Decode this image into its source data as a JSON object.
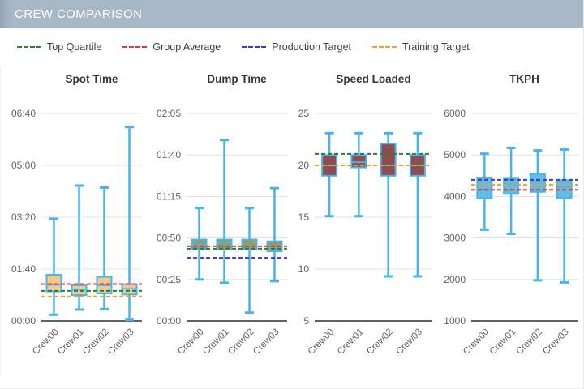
{
  "header": {
    "title": "CREW COMPARISON"
  },
  "legend": [
    {
      "name": "top-quartile",
      "label": "Top Quartile",
      "color": "#2e7d32"
    },
    {
      "name": "group-average",
      "label": "Group Average",
      "color": "#e53935"
    },
    {
      "name": "production-target",
      "label": "Production Target",
      "color": "#3939d4"
    },
    {
      "name": "training-target",
      "label": "Training Target",
      "color": "#f59a23"
    }
  ],
  "colors": {
    "header_bg": "#a7b7c6",
    "box_stroke": "#47b4ec",
    "gridline": "#e3e3e3",
    "axis": "#5f6368"
  },
  "chart_data": [
    {
      "type": "boxplot",
      "title": "Spot Time",
      "categories": [
        "Crew00",
        "Crew01",
        "Crew02",
        "Crew03"
      ],
      "ylim": [
        0,
        400
      ],
      "yticks": [
        0,
        100,
        200,
        300,
        400
      ],
      "ytick_labels": [
        "00:00",
        "01:40",
        "03:20",
        "05:00",
        "06:40"
      ],
      "box_fill": "#f4c98e",
      "series": [
        {
          "name": "Crew00",
          "low": 12,
          "q1": 57,
          "median": 70,
          "q3": 89,
          "high": 197
        },
        {
          "name": "Crew01",
          "low": 22,
          "q1": 50,
          "median": 61,
          "q3": 69,
          "high": 261
        },
        {
          "name": "Crew02",
          "low": 23,
          "q1": 53,
          "median": 69,
          "q3": 85,
          "high": 257
        },
        {
          "name": "Crew03",
          "low": 2,
          "q1": 51,
          "median": 62,
          "q3": 71,
          "high": 374
        }
      ],
      "ref_lines": [
        {
          "legend": "Group Average",
          "value": 71,
          "color": "#e53935"
        },
        {
          "legend": "Top Quartile",
          "value": 58,
          "color": "#2e7d32"
        },
        {
          "legend": "Training Target",
          "value": 47,
          "color": "#f59a23"
        }
      ]
    },
    {
      "type": "boxplot",
      "title": "Dump Time",
      "categories": [
        "Crew00",
        "Crew01",
        "Crew02",
        "Crew03"
      ],
      "ylim": [
        0,
        125
      ],
      "yticks": [
        0,
        25,
        50,
        75,
        100,
        125
      ],
      "ytick_labels": [
        "00:00",
        "00:25",
        "00:50",
        "01:15",
        "01:40",
        "02:05"
      ],
      "box_fill": "#8f9e63",
      "series": [
        {
          "name": "Crew00",
          "low": 25,
          "q1": 43,
          "median": 46,
          "q3": 49,
          "high": 68
        },
        {
          "name": "Crew01",
          "low": 23,
          "q1": 43,
          "median": 47,
          "q3": 49,
          "high": 109
        },
        {
          "name": "Crew02",
          "low": 5,
          "q1": 43,
          "median": 45,
          "q3": 49,
          "high": 68
        },
        {
          "name": "Crew03",
          "low": 24,
          "q1": 42,
          "median": 44,
          "q3": 48,
          "high": 80
        }
      ],
      "ref_lines": [
        {
          "legend": "Group Average",
          "value": 45,
          "color": "#e53935"
        },
        {
          "legend": "Top Quartile",
          "value": 43.5,
          "color": "#2e7d32"
        },
        {
          "legend": "Production Target",
          "value": 38,
          "color": "#3939d4"
        }
      ]
    },
    {
      "type": "boxplot",
      "title": "Speed Loaded",
      "categories": [
        "Crew00",
        "Crew01",
        "Crew02",
        "Crew03"
      ],
      "ylim": [
        5,
        25
      ],
      "yticks": [
        5,
        10,
        15,
        20,
        25
      ],
      "ytick_labels": [
        "5",
        "10",
        "15",
        "20",
        "25"
      ],
      "box_fill": "#8e4b52",
      "series": [
        {
          "name": "Crew00",
          "low": 15.1,
          "q1": 19.0,
          "median": 20.0,
          "q3": 21.0,
          "high": 23.1
        },
        {
          "name": "Crew01",
          "low": 15.1,
          "q1": 19.8,
          "median": 20.3,
          "q3": 21.0,
          "high": 23.1
        },
        {
          "name": "Crew02",
          "low": 9.3,
          "q1": 19.0,
          "median": 20.0,
          "q3": 22.1,
          "high": 23.1
        },
        {
          "name": "Crew03",
          "low": 9.3,
          "q1": 19.0,
          "median": 20.0,
          "q3": 21.0,
          "high": 23.1
        }
      ],
      "ref_lines": [
        {
          "legend": "Top Quartile",
          "value": 21.1,
          "color": "#2e7d32"
        },
        {
          "legend": "Training Target",
          "value": 20.0,
          "color": "#f59a23"
        }
      ]
    },
    {
      "type": "boxplot",
      "title": "TKPH",
      "categories": [
        "Crew00",
        "Crew01",
        "Crew02",
        "Crew03"
      ],
      "ylim": [
        1000,
        6000
      ],
      "yticks": [
        1000,
        2000,
        3000,
        4000,
        5000,
        6000
      ],
      "ytick_labels": [
        "1000",
        "2000",
        "3000",
        "4000",
        "5000",
        "6000"
      ],
      "box_fill": "#64bbe3",
      "series": [
        {
          "name": "Crew00",
          "low": 3200,
          "q1": 3960,
          "median": 4170,
          "q3": 4440,
          "high": 5030
        },
        {
          "name": "Crew01",
          "low": 3100,
          "q1": 4060,
          "median": 4290,
          "q3": 4430,
          "high": 5170
        },
        {
          "name": "Crew02",
          "low": 1980,
          "q1": 4110,
          "median": 4360,
          "q3": 4540,
          "high": 5110
        },
        {
          "name": "Crew03",
          "low": 1930,
          "q1": 3960,
          "median": 4230,
          "q3": 4390,
          "high": 5130
        }
      ],
      "ref_lines": [
        {
          "legend": "Production Target",
          "value": 4400,
          "color": "#3939d4"
        },
        {
          "legend": "Training Target",
          "value": 4280,
          "color": "#f59a23"
        },
        {
          "legend": "Group Average",
          "value": 4160,
          "color": "#e53935"
        }
      ]
    }
  ]
}
